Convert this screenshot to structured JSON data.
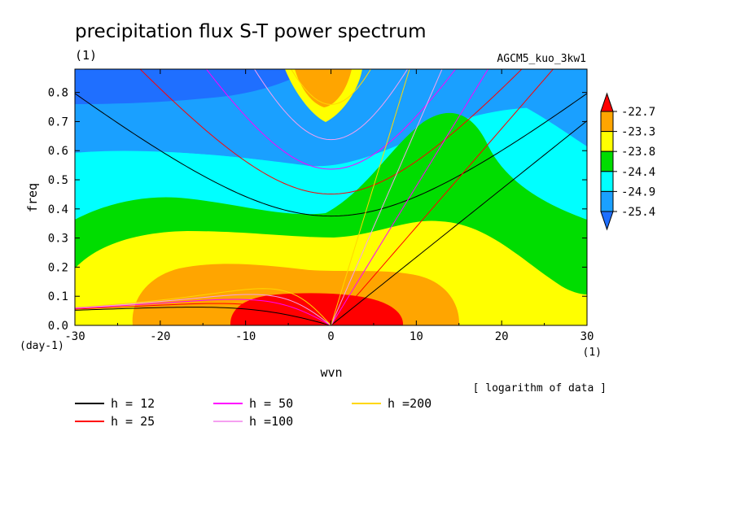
{
  "chart_data": {
    "type": "heatmap",
    "title": "precipitation flux S-T power spectrum",
    "subtitle": "(1)",
    "run_label": "AGCM5_kuo_3kw1",
    "xlabel": "wvn",
    "ylabel": "freq",
    "x_unit": "(1)",
    "y_unit": "(day-1)",
    "note": "[ logarithm of data ]",
    "xlim": [
      -30,
      30
    ],
    "ylim": [
      0,
      0.88
    ],
    "xticks": [
      -30,
      -20,
      -10,
      0,
      10,
      20,
      30
    ],
    "xtick_labels": [
      "-30",
      "-20",
      "-10",
      "0",
      "10",
      "20",
      "30"
    ],
    "yticks": [
      0.0,
      0.1,
      0.2,
      0.3,
      0.4,
      0.5,
      0.6,
      0.7,
      0.8
    ],
    "ytick_labels": [
      "0.0",
      "0.1",
      "0.2",
      "0.3",
      "0.4",
      "0.5",
      "0.6",
      "0.7",
      "0.8"
    ],
    "colorbar": {
      "levels": [
        "-22.7",
        "-23.3",
        "-23.8",
        "-24.4",
        "-24.9",
        "-25.4"
      ],
      "colors": [
        "#1f6fff",
        "#1aa0ff",
        "#00ffff",
        "#00dd00",
        "#ffff00",
        "#ffa500",
        "#ff0000"
      ]
    },
    "dispersion_curves": [
      {
        "label": "h = 12",
        "h": 12,
        "color": "#000000"
      },
      {
        "label": "h = 25",
        "h": 25,
        "color": "#ff0000"
      },
      {
        "label": "h = 50",
        "h": 50,
        "color": "#ff00ff"
      },
      {
        "label": "h =100",
        "h": 100,
        "color": "#f5a0f0"
      },
      {
        "label": "h =200",
        "h": 200,
        "color": "#ffd700"
      }
    ]
  }
}
